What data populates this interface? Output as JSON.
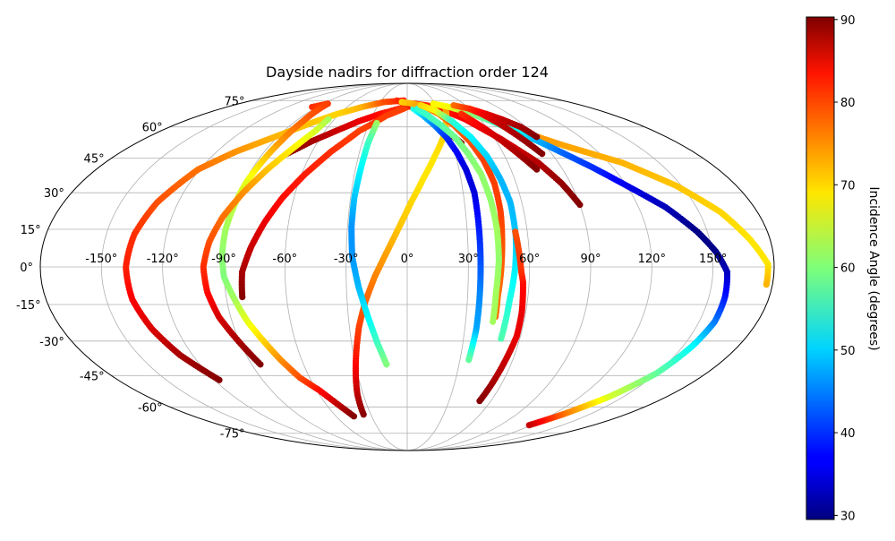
{
  "chart_data": {
    "type": "scatter",
    "projection": "mollweide",
    "title": "Dayside nadirs for diffraction order 124",
    "xlabel": "",
    "ylabel": "",
    "grid": true,
    "x_ticks": [
      "-150°",
      "-120°",
      "-90°",
      "-60°",
      "-30°",
      "0°",
      "30°",
      "60°",
      "90°",
      "120°",
      "150°"
    ],
    "y_ticks": [
      "-75°",
      "-60°",
      "-45°",
      "-30°",
      "-15°",
      "0°",
      "15°",
      "30°",
      "45°",
      "60°",
      "75°"
    ],
    "xlim": [
      -180,
      180
    ],
    "ylim": [
      -90,
      90
    ],
    "colorbar": {
      "label": "Incidence Angle (degrees)",
      "colormap": "jet",
      "min": 29.5,
      "max": 90.3,
      "ticks": [
        "30",
        "40",
        "50",
        "60",
        "70",
        "80",
        "90"
      ],
      "tick_values": [
        30,
        40,
        50,
        60,
        70,
        80,
        90
      ]
    },
    "series": [
      {
        "points": [
          [
            -117,
            -47,
            90
          ],
          [
            -127,
            -36,
            88
          ],
          [
            -133,
            -25,
            85
          ],
          [
            -137,
            -13,
            83
          ],
          [
            -138,
            0,
            81
          ],
          [
            -136,
            13,
            80
          ],
          [
            -131,
            26,
            78
          ],
          [
            -121,
            40,
            76
          ],
          [
            -108,
            48,
            74
          ],
          [
            -92,
            55,
            72
          ],
          [
            -76,
            62,
            71
          ],
          [
            -62,
            67,
            70
          ],
          [
            -45,
            71,
            72
          ],
          [
            -26,
            74,
            78
          ],
          [
            -4,
            75,
            81
          ]
        ]
      },
      {
        "points": [
          [
            -75,
            47,
            90
          ],
          [
            -64,
            53,
            88
          ],
          [
            -52,
            58,
            86
          ],
          [
            -39,
            63,
            84
          ],
          [
            -24,
            67,
            82
          ],
          [
            -8,
            70,
            80
          ],
          [
            8,
            73,
            79
          ],
          [
            20,
            72,
            78
          ],
          [
            38,
            70,
            77
          ],
          [
            57,
            67,
            76
          ],
          [
            75,
            62,
            75
          ],
          [
            85,
            57,
            74
          ],
          [
            102,
            51,
            73
          ],
          [
            128,
            43,
            72
          ],
          [
            147,
            33,
            71
          ],
          [
            161,
            22,
            70
          ],
          [
            170,
            11,
            69
          ],
          [
            177,
            1,
            69
          ],
          [
            177,
            -7,
            72
          ]
        ]
      },
      {
        "points": [
          [
            -95,
            71,
            80
          ],
          [
            -85,
            73,
            79
          ],
          [
            -84,
            63,
            77
          ],
          [
            -85,
            53,
            74
          ],
          [
            -87,
            43,
            70
          ],
          [
            -89,
            34,
            66
          ],
          [
            -90,
            25,
            64
          ],
          [
            -91,
            15,
            62
          ],
          [
            -91,
            5,
            61
          ],
          [
            -90,
            -4,
            60
          ],
          [
            -86,
            -13,
            62
          ],
          [
            -82,
            -22,
            66
          ],
          [
            -77,
            -30,
            70
          ],
          [
            -72,
            -38,
            74
          ],
          [
            -66,
            -46,
            78
          ],
          [
            -58,
            -52,
            82
          ],
          [
            -50,
            -60,
            87
          ],
          [
            -45,
            -65,
            90
          ]
        ]
      },
      {
        "points": [
          [
            -65,
            64,
            62
          ],
          [
            -67,
            58,
            65
          ],
          [
            -73,
            50,
            68
          ],
          [
            -81,
            40,
            71
          ],
          [
            -88,
            30,
            74
          ],
          [
            -94,
            20,
            76
          ],
          [
            -98,
            10,
            78
          ],
          [
            -100,
            0,
            80
          ],
          [
            -99,
            -10,
            82
          ],
          [
            -96,
            -20,
            85
          ],
          [
            -90,
            -31,
            88
          ],
          [
            -85,
            -40,
            90
          ]
        ]
      },
      {
        "points": [
          [
            -82,
            -12,
            90
          ],
          [
            -81,
            -2,
            88
          ],
          [
            -77,
            8,
            86
          ],
          [
            -72,
            18,
            84
          ],
          [
            -66,
            28,
            82
          ],
          [
            -58,
            38,
            81
          ],
          [
            -48,
            48,
            80
          ],
          [
            -35,
            58,
            79
          ],
          [
            -18,
            66,
            79
          ],
          [
            0,
            71,
            79
          ],
          [
            18,
            72,
            80
          ],
          [
            32,
            70,
            81
          ],
          [
            48,
            64,
            83
          ],
          [
            64,
            54,
            85
          ],
          [
            78,
            43,
            87
          ],
          [
            85,
            34,
            89
          ],
          [
            90,
            25,
            90
          ]
        ]
      },
      {
        "points": [
          [
            -12,
            75,
            80
          ],
          [
            0,
            73,
            82
          ],
          [
            12,
            69,
            84
          ],
          [
            22,
            63,
            86
          ],
          [
            30,
            57,
            88
          ],
          [
            36,
            52,
            90
          ]
        ]
      },
      {
        "points": [
          [
            -36,
            -64,
            90
          ],
          [
            -34,
            -54,
            87
          ],
          [
            -31,
            -44,
            84
          ],
          [
            -28,
            -34,
            81
          ],
          [
            -25,
            -24,
            79
          ],
          [
            -21,
            -14,
            77
          ],
          [
            -16,
            -4,
            75
          ],
          [
            -10,
            6,
            73
          ],
          [
            -4,
            16,
            71
          ],
          [
            2,
            26,
            70
          ],
          [
            9,
            36,
            69
          ],
          [
            17,
            46,
            69
          ],
          [
            26,
            56,
            70
          ],
          [
            33,
            65,
            72
          ],
          [
            38,
            71,
            74
          ]
        ]
      },
      {
        "points": [
          [
            -24,
            62,
            62
          ],
          [
            -26,
            52,
            56
          ],
          [
            -27,
            40,
            52
          ],
          [
            -28,
            28,
            49
          ],
          [
            -28,
            16,
            46
          ],
          [
            -27,
            4,
            46
          ],
          [
            -24,
            -8,
            48
          ],
          [
            -20,
            -20,
            52
          ],
          [
            -16,
            -31,
            56
          ],
          [
            -12,
            -40,
            60
          ]
        ]
      },
      {
        "points": [
          [
            6,
            70,
            55
          ],
          [
            14,
            66,
            49
          ],
          [
            21,
            61,
            45
          ],
          [
            27,
            55,
            40
          ],
          [
            31,
            48,
            37
          ],
          [
            34,
            40,
            35
          ],
          [
            36,
            30,
            35
          ],
          [
            36,
            18,
            38
          ],
          [
            36,
            5,
            41
          ],
          [
            36,
            -10,
            45
          ],
          [
            36,
            -25,
            47
          ],
          [
            35,
            -38,
            58
          ]
        ]
      },
      {
        "points": [
          [
            -6,
            74,
            70
          ],
          [
            6,
            73,
            72
          ],
          [
            18,
            71,
            74
          ],
          [
            28,
            67,
            76
          ],
          [
            36,
            61,
            77
          ],
          [
            42,
            53,
            78
          ],
          [
            46,
            44,
            79
          ],
          [
            48,
            34,
            79
          ],
          [
            48,
            22,
            79
          ],
          [
            47,
            10,
            78
          ],
          [
            46,
            -2,
            77
          ],
          [
            45,
            -12,
            76
          ],
          [
            45,
            -20,
            76
          ]
        ]
      },
      {
        "points": [
          [
            10,
            70,
            55
          ],
          [
            18,
            66,
            56
          ],
          [
            26,
            61,
            57
          ],
          [
            33,
            55,
            59
          ],
          [
            38,
            47,
            60
          ],
          [
            42,
            38,
            61
          ],
          [
            44,
            27,
            61
          ],
          [
            45,
            15,
            62
          ],
          [
            45,
            3,
            61
          ],
          [
            44,
            -10,
            62
          ],
          [
            44,
            -22,
            62
          ]
        ]
      },
      {
        "points": [
          [
            14,
            72,
            70
          ],
          [
            26,
            69,
            68
          ],
          [
            36,
            63,
            55
          ],
          [
            44,
            55,
            52
          ],
          [
            49,
            46,
            50
          ],
          [
            52,
            36,
            48
          ],
          [
            54,
            26,
            48
          ],
          [
            54,
            12,
            49
          ],
          [
            53,
            0,
            51
          ],
          [
            51,
            -14,
            54
          ],
          [
            50,
            -29,
            57
          ]
        ]
      },
      {
        "points": [
          [
            52,
            -57,
            90
          ],
          [
            54,
            -48,
            88
          ],
          [
            56,
            -38,
            86
          ],
          [
            58,
            -28,
            84
          ],
          [
            58,
            -18,
            84
          ],
          [
            57,
            -6,
            82
          ],
          [
            56,
            -2,
            80
          ],
          [
            55,
            6,
            79
          ],
          [
            54,
            14,
            78
          ]
        ]
      },
      {
        "points": [
          [
            28,
            73,
            68
          ],
          [
            42,
            71,
            67
          ],
          [
            55,
            68,
            62
          ],
          [
            68,
            63,
            57
          ],
          [
            78,
            58,
            53
          ],
          [
            88,
            53,
            48
          ],
          [
            98,
            47,
            43
          ],
          [
            108,
            41,
            40
          ],
          [
            120,
            33,
            36
          ],
          [
            134,
            24,
            33
          ],
          [
            145,
            14,
            30
          ],
          [
            152,
            6,
            30
          ],
          [
            157,
            -2,
            33
          ],
          [
            158,
            -12,
            38
          ],
          [
            158,
            -22,
            44
          ],
          [
            155,
            -32,
            52
          ],
          [
            150,
            -44,
            58
          ],
          [
            140,
            -55,
            65
          ],
          [
            128,
            -64,
            76
          ],
          [
            118,
            -70,
            86
          ]
        ]
      },
      {
        "points": [
          [
            48,
            72,
            76
          ],
          [
            60,
            70,
            80
          ],
          [
            70,
            67,
            84
          ],
          [
            78,
            64,
            86
          ],
          [
            86,
            60,
            88
          ],
          [
            90,
            55,
            90
          ]
        ]
      },
      {
        "points": [
          [
            48,
            67,
            80
          ],
          [
            53,
            63,
            82
          ],
          [
            58,
            59,
            84
          ],
          [
            64,
            53,
            86
          ],
          [
            70,
            46,
            88
          ],
          [
            75,
            40,
            90
          ]
        ]
      },
      {
        "points": [
          [
            60,
            70,
            80
          ],
          [
            66,
            67,
            83
          ],
          [
            72,
            62,
            86
          ],
          [
            78,
            55,
            88
          ],
          [
            84,
            47,
            90
          ]
        ]
      }
    ]
  }
}
